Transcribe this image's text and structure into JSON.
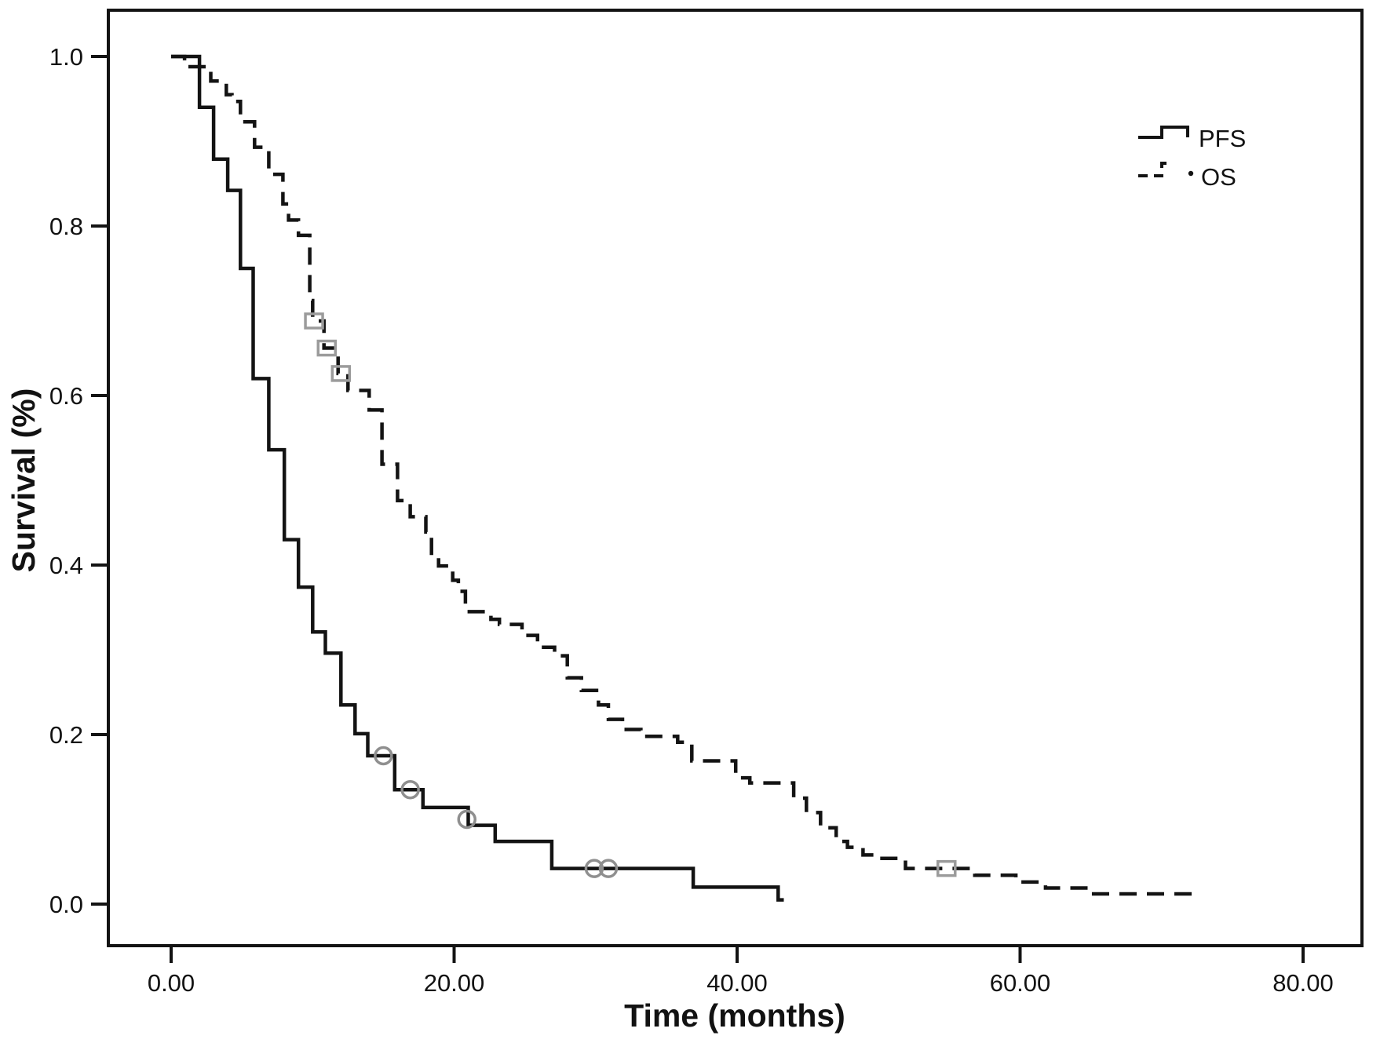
{
  "colors": {
    "background": "#ffffff",
    "line": "#131313",
    "frame": "#131313",
    "censor_circle": "#8f8f8f",
    "censor_square": "#9b9b9b"
  },
  "chart_data": {
    "type": "line",
    "chart_style": "kaplan-meier-step",
    "title": "",
    "xlabel": "Time (months)",
    "ylabel": "Survival (%)",
    "xlim": [
      -4.4,
      84.1
    ],
    "ylim": [
      -0.052,
      1.055
    ],
    "grid": false,
    "x_ticks": [
      {
        "t": 0,
        "label": "0.00"
      },
      {
        "t": 20,
        "label": "20.00"
      },
      {
        "t": 40,
        "label": "40.00"
      },
      {
        "t": 60,
        "label": "60.00"
      },
      {
        "t": 80,
        "label": "80.00"
      }
    ],
    "y_ticks": [
      {
        "v": 0.0,
        "label": "0.0"
      },
      {
        "v": 0.2,
        "label": "0.2"
      },
      {
        "v": 0.4,
        "label": "0.4"
      },
      {
        "v": 0.6,
        "label": "0.6"
      },
      {
        "v": 0.8,
        "label": "0.8"
      },
      {
        "v": 1.0,
        "label": "1.0"
      }
    ],
    "legend": {
      "position": "top-right",
      "entries": [
        {
          "label": "PFS",
          "line": "solid",
          "prefix_dot": false
        },
        {
          "label": "OS",
          "line": "dashed",
          "prefix_dot": true
        }
      ]
    },
    "series": [
      {
        "name": "PFS",
        "line_style": "solid",
        "censor_marker": "circle",
        "end_time": 43.3,
        "points": [
          [
            0,
            1.0
          ],
          [
            2.0,
            0.94
          ],
          [
            3.0,
            0.879
          ],
          [
            4.0,
            0.842
          ],
          [
            4.9,
            0.75
          ],
          [
            5.8,
            0.62
          ],
          [
            6.9,
            0.536
          ],
          [
            8.0,
            0.43
          ],
          [
            9.0,
            0.374
          ],
          [
            10.0,
            0.321
          ],
          [
            10.9,
            0.296
          ],
          [
            12.0,
            0.235
          ],
          [
            13.0,
            0.201
          ],
          [
            13.9,
            0.175
          ],
          [
            15.8,
            0.135
          ],
          [
            17.8,
            0.114
          ],
          [
            21.0,
            0.093
          ],
          [
            22.9,
            0.074
          ],
          [
            26.9,
            0.042
          ],
          [
            36.9,
            0.02
          ],
          [
            42.9,
            0.005
          ]
        ],
        "censors": [
          [
            15.0,
            0.175
          ],
          [
            16.9,
            0.135
          ],
          [
            20.9,
            0.1
          ],
          [
            29.9,
            0.042
          ],
          [
            30.9,
            0.042
          ]
        ]
      },
      {
        "name": "OS",
        "line_style": "dashed",
        "censor_marker": "square",
        "end_time": 72.3,
        "points": [
          [
            0,
            1.0
          ],
          [
            0.95,
            0.988
          ],
          [
            2.8,
            0.971
          ],
          [
            3.9,
            0.955
          ],
          [
            4.3,
            0.947
          ],
          [
            4.9,
            0.923
          ],
          [
            5.9,
            0.893
          ],
          [
            6.9,
            0.861
          ],
          [
            7.9,
            0.826
          ],
          [
            8.3,
            0.807
          ],
          [
            9.0,
            0.789
          ],
          [
            9.8,
            0.712
          ],
          [
            10.0,
            0.688
          ],
          [
            10.8,
            0.656
          ],
          [
            11.8,
            0.626
          ],
          [
            12.5,
            0.606
          ],
          [
            14.0,
            0.583
          ],
          [
            14.9,
            0.519
          ],
          [
            16.0,
            0.476
          ],
          [
            16.9,
            0.457
          ],
          [
            18.0,
            0.439
          ],
          [
            18.4,
            0.411
          ],
          [
            18.9,
            0.399
          ],
          [
            19.9,
            0.382
          ],
          [
            20.3,
            0.369
          ],
          [
            20.8,
            0.345
          ],
          [
            22.6,
            0.336
          ],
          [
            23.2,
            0.33
          ],
          [
            24.8,
            0.317
          ],
          [
            25.9,
            0.303
          ],
          [
            27.1,
            0.293
          ],
          [
            28.0,
            0.267
          ],
          [
            29.0,
            0.252
          ],
          [
            30.2,
            0.235
          ],
          [
            30.9,
            0.218
          ],
          [
            31.9,
            0.206
          ],
          [
            33.2,
            0.198
          ],
          [
            35.8,
            0.191
          ],
          [
            36.8,
            0.169
          ],
          [
            39.9,
            0.149
          ],
          [
            40.9,
            0.143
          ],
          [
            44.0,
            0.125
          ],
          [
            44.9,
            0.108
          ],
          [
            45.9,
            0.09
          ],
          [
            47.0,
            0.074
          ],
          [
            47.8,
            0.067
          ],
          [
            48.9,
            0.058
          ],
          [
            49.8,
            0.054
          ],
          [
            51.9,
            0.042
          ],
          [
            56.8,
            0.034
          ],
          [
            59.7,
            0.026
          ],
          [
            61.8,
            0.019
          ],
          [
            65.2,
            0.012
          ]
        ],
        "censors": [
          [
            10.1,
            0.688
          ],
          [
            11.0,
            0.656
          ],
          [
            12.0,
            0.626
          ],
          [
            54.8,
            0.042
          ]
        ]
      }
    ]
  }
}
